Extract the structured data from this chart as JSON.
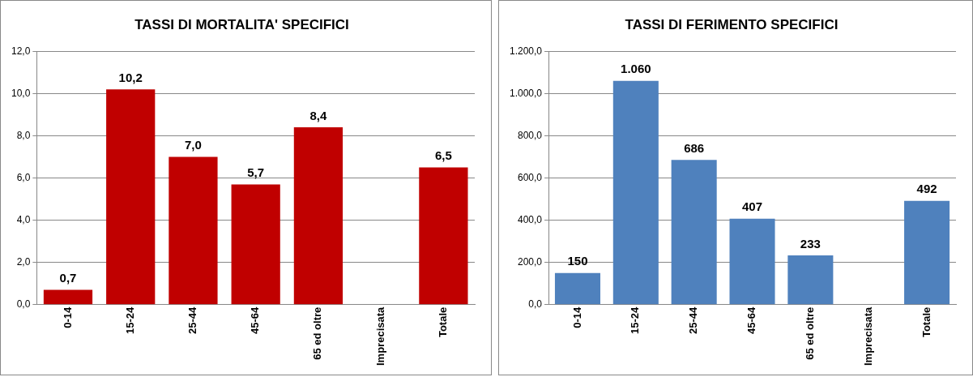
{
  "chart_data": [
    {
      "type": "bar",
      "title": "TASSI DI MORTALITA' SPECIFICI",
      "categories": [
        "0-14",
        "15-24",
        "25-44",
        "45-64",
        "65 ed oltre",
        "Imprecisata",
        "Totale"
      ],
      "values": [
        0.7,
        10.2,
        7.0,
        5.7,
        8.4,
        null,
        6.5
      ],
      "value_labels": [
        "0,7",
        "10,2",
        "7,0",
        "5,7",
        "8,4",
        null,
        "6,5"
      ],
      "color": "#c00000",
      "ylim": [
        0,
        12
      ],
      "yticks": [
        {
          "value": 0,
          "label": "0,0"
        },
        {
          "value": 2,
          "label": "2,0"
        },
        {
          "value": 4,
          "label": "4,0"
        },
        {
          "value": 6,
          "label": "6,0"
        },
        {
          "value": 8,
          "label": "8,0"
        },
        {
          "value": 10,
          "label": "10,0"
        },
        {
          "value": 12,
          "label": "12,0"
        }
      ],
      "grid": "y"
    },
    {
      "type": "bar",
      "title": "TASSI DI FERIMENTO SPECIFICI",
      "categories": [
        "0-14",
        "15-24",
        "25-44",
        "45-64",
        "65 ed oltre",
        "Imprecisata",
        "Totale"
      ],
      "values": [
        150,
        1060,
        686,
        407,
        233,
        null,
        492
      ],
      "value_labels": [
        "150",
        "1.060",
        "686",
        "407",
        "233",
        null,
        "492"
      ],
      "color": "#4f81bd",
      "ylim": [
        0,
        1200
      ],
      "yticks": [
        {
          "value": 0,
          "label": "0,0"
        },
        {
          "value": 200,
          "label": "200,0"
        },
        {
          "value": 400,
          "label": "400,0"
        },
        {
          "value": 600,
          "label": "600,0"
        },
        {
          "value": 800,
          "label": "800,0"
        },
        {
          "value": 1000,
          "label": "1.000,0"
        },
        {
          "value": 1200,
          "label": "1.200,0"
        }
      ],
      "grid": "y"
    }
  ]
}
